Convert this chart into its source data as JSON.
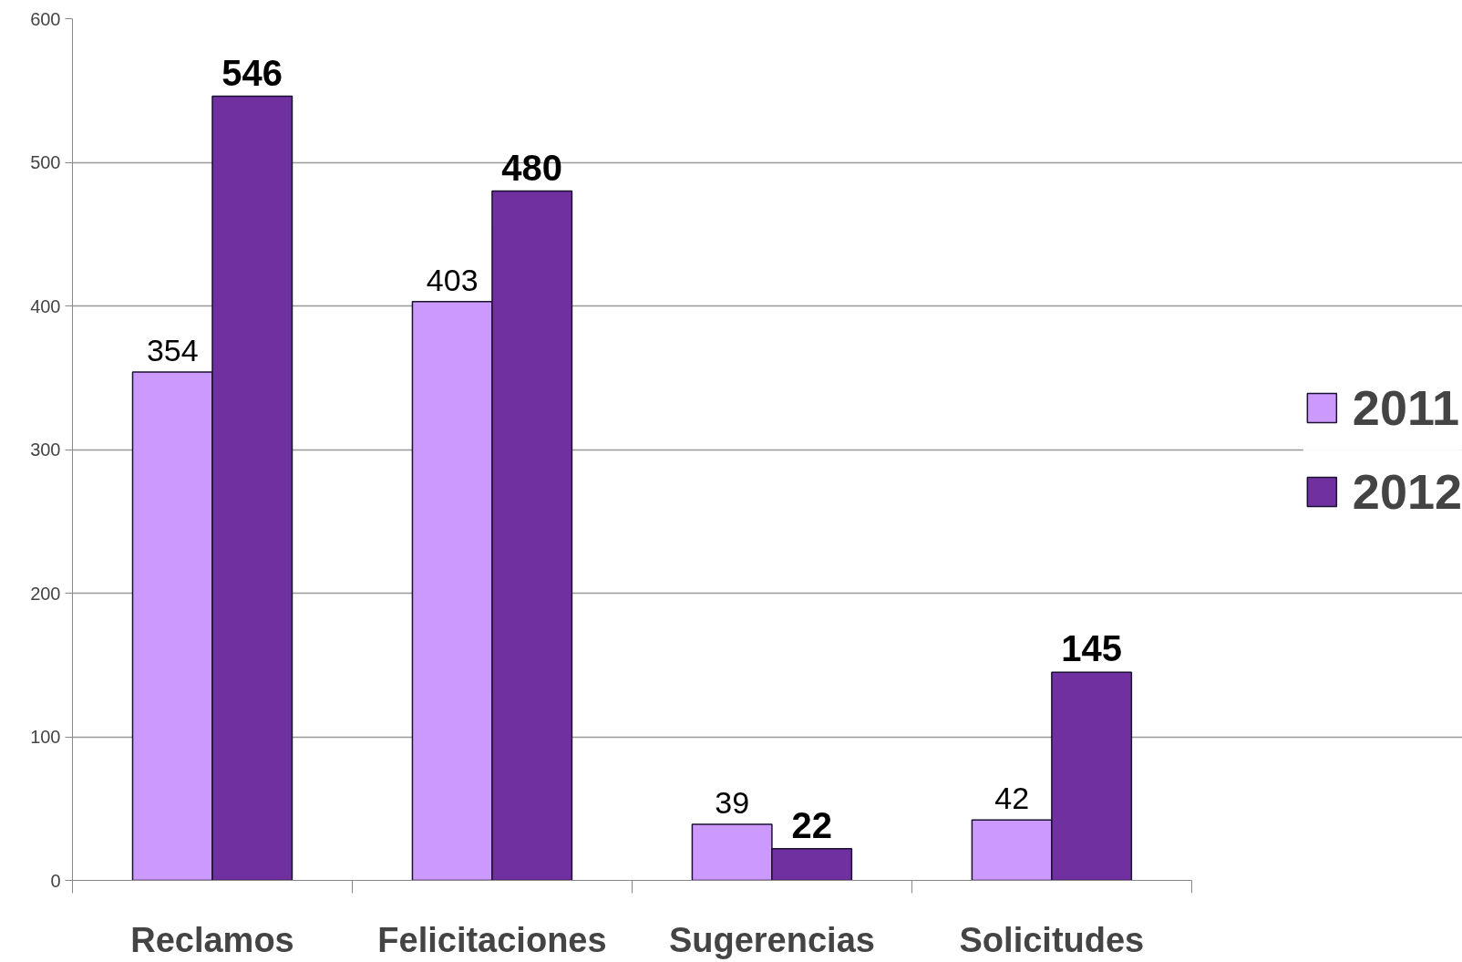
{
  "chart_data": {
    "type": "bar",
    "categories": [
      "Reclamos",
      "Felicitaciones",
      "Sugerencias",
      "Solicitudes"
    ],
    "series": [
      {
        "name": "2011",
        "color": "#cc99ff",
        "values": [
          354,
          403,
          39,
          42
        ]
      },
      {
        "name": "2012",
        "color": "#7030a0",
        "values": [
          546,
          480,
          22,
          145
        ]
      }
    ],
    "ylim": [
      0,
      600
    ],
    "yticks": [
      0,
      100,
      200,
      300,
      400,
      500,
      600
    ],
    "grid": "y",
    "legend": "right",
    "data_labels": true
  }
}
